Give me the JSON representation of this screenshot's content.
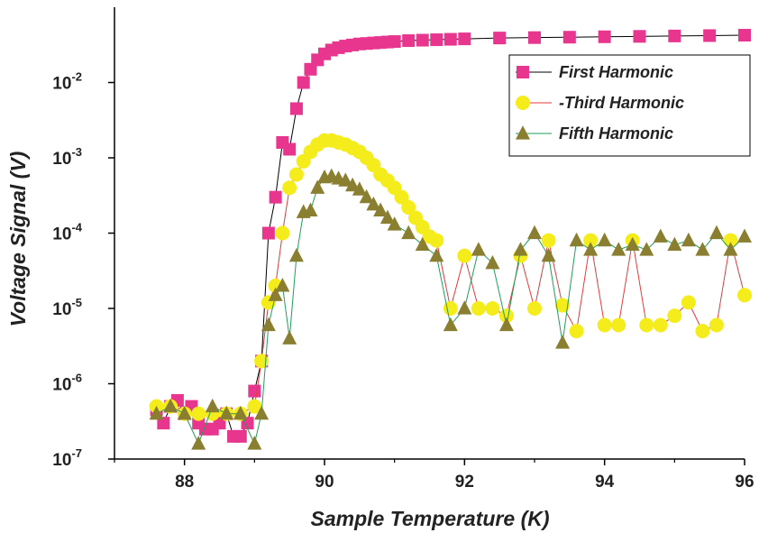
{
  "chart_data": {
    "type": "line",
    "xlabel": "Sample Temperature (K)",
    "ylabel": "Voltage Signal (V)",
    "xlim": [
      87,
      96
    ],
    "ylim": [
      1e-07,
      0.1
    ],
    "yscale": "log",
    "x_ticks": [
      88,
      90,
      92,
      94,
      96
    ],
    "x_tick_labels": [
      "88",
      "90",
      "92",
      "94",
      "96"
    ],
    "y_ticks": [
      1e-07,
      1e-06,
      1e-05,
      0.0001,
      0.001,
      0.01
    ],
    "y_tick_labels": [
      {
        "base": "10",
        "exp": "-7"
      },
      {
        "base": "10",
        "exp": "-6"
      },
      {
        "base": "10",
        "exp": "-5"
      },
      {
        "base": "10",
        "exp": "-4"
      },
      {
        "base": "10",
        "exp": "-3"
      },
      {
        "base": "10",
        "exp": "-2"
      }
    ],
    "grid": false,
    "legend_position": "top-right",
    "series": [
      {
        "name": "First Harmonic",
        "color": "#e8368f",
        "line_color": "#000000",
        "marker": "square",
        "x": [
          87.6,
          87.7,
          87.8,
          87.9,
          88.0,
          88.1,
          88.2,
          88.3,
          88.4,
          88.5,
          88.6,
          88.7,
          88.8,
          88.9,
          89.0,
          89.1,
          89.2,
          89.3,
          89.4,
          89.5,
          89.6,
          89.7,
          89.8,
          89.9,
          90.0,
          90.1,
          90.2,
          90.3,
          90.4,
          90.5,
          90.6,
          90.7,
          90.8,
          90.9,
          91.0,
          91.2,
          91.4,
          91.6,
          91.8,
          92.0,
          92.5,
          93.0,
          93.5,
          94.0,
          94.5,
          95.0,
          95.5,
          96.0
        ],
        "y": [
          4.5e-07,
          3e-07,
          5e-07,
          6e-07,
          4e-07,
          5e-07,
          3e-07,
          2.5e-07,
          2.5e-07,
          3e-07,
          4e-07,
          2e-07,
          2e-07,
          3e-07,
          8e-07,
          2e-06,
          0.0001,
          0.0003,
          0.0016,
          0.0013,
          0.0045,
          0.01,
          0.015,
          0.02,
          0.024,
          0.027,
          0.029,
          0.0305,
          0.0315,
          0.0325,
          0.033,
          0.0335,
          0.034,
          0.0345,
          0.035,
          0.036,
          0.0365,
          0.037,
          0.0375,
          0.038,
          0.039,
          0.0395,
          0.04,
          0.0405,
          0.041,
          0.0415,
          0.042,
          0.0425
        ]
      },
      {
        "name": "-Third Harmonic",
        "color": "#f5ec1c",
        "line_color": "#e43a3a",
        "marker": "circle",
        "x": [
          87.6,
          87.8,
          88.0,
          88.2,
          88.4,
          88.6,
          88.8,
          89.0,
          89.1,
          89.2,
          89.3,
          89.4,
          89.5,
          89.6,
          89.7,
          89.8,
          89.9,
          90.0,
          90.1,
          90.2,
          90.3,
          90.4,
          90.5,
          90.6,
          90.7,
          90.8,
          90.9,
          91.0,
          91.1,
          91.2,
          91.3,
          91.4,
          91.5,
          91.6,
          91.8,
          92.0,
          92.2,
          92.4,
          92.6,
          92.8,
          93.0,
          93.2,
          93.4,
          93.6,
          93.8,
          94.0,
          94.2,
          94.4,
          94.6,
          94.8,
          95.0,
          95.2,
          95.4,
          95.6,
          95.8,
          96.0
        ],
        "y": [
          5e-07,
          5e-07,
          4e-07,
          4e-07,
          4e-07,
          4e-07,
          4e-07,
          5e-07,
          2e-06,
          1.2e-05,
          2e-05,
          0.0001,
          0.0004,
          0.0006,
          0.0009,
          0.0012,
          0.0015,
          0.0017,
          0.0017,
          0.0016,
          0.0015,
          0.00135,
          0.0012,
          0.001,
          0.0008,
          0.0006,
          0.0005,
          0.0004,
          0.0003,
          0.00022,
          0.00016,
          0.00012,
          9e-05,
          8e-05,
          1e-05,
          5e-05,
          1e-05,
          1e-05,
          8e-06,
          5e-05,
          1e-05,
          8e-05,
          1.1e-05,
          5e-06,
          8e-05,
          6e-06,
          6e-06,
          8e-05,
          6e-06,
          6e-06,
          8e-06,
          1.2e-05,
          5e-06,
          6e-06,
          8e-05,
          1.5e-05
        ]
      },
      {
        "name": "Fifth Harmonic",
        "color": "#8a7f31",
        "line_color": "#1f9e59",
        "marker": "triangle",
        "x": [
          87.6,
          87.8,
          88.0,
          88.2,
          88.4,
          88.6,
          88.8,
          89.0,
          89.1,
          89.2,
          89.3,
          89.4,
          89.5,
          89.6,
          89.7,
          89.8,
          89.9,
          90.0,
          90.1,
          90.2,
          90.3,
          90.4,
          90.5,
          90.6,
          90.7,
          90.8,
          90.9,
          91.0,
          91.2,
          91.4,
          91.6,
          91.8,
          92.0,
          92.2,
          92.4,
          92.6,
          92.8,
          93.0,
          93.2,
          93.4,
          93.6,
          93.8,
          94.0,
          94.2,
          94.4,
          94.6,
          94.8,
          95.0,
          95.2,
          95.4,
          95.6,
          95.8,
          96.0
        ],
        "y": [
          4e-07,
          5e-07,
          4e-07,
          1.6e-07,
          5e-07,
          4e-07,
          4e-07,
          1.6e-07,
          4e-07,
          6e-06,
          1.5e-05,
          2e-05,
          4e-06,
          5e-05,
          0.00019,
          0.0002,
          0.0004,
          0.00055,
          0.00057,
          0.00053,
          0.0005,
          0.00043,
          0.00038,
          0.0003,
          0.00024,
          0.0002,
          0.00016,
          0.00013,
          0.0001,
          7e-05,
          5e-05,
          6e-06,
          1e-05,
          6e-05,
          4e-05,
          6e-06,
          6e-05,
          0.0001,
          5e-05,
          3.5e-06,
          8e-05,
          6e-05,
          8e-05,
          6e-05,
          7e-05,
          6e-05,
          9e-05,
          7e-05,
          8e-05,
          6e-05,
          0.0001,
          6e-05,
          9e-05
        ]
      }
    ]
  }
}
